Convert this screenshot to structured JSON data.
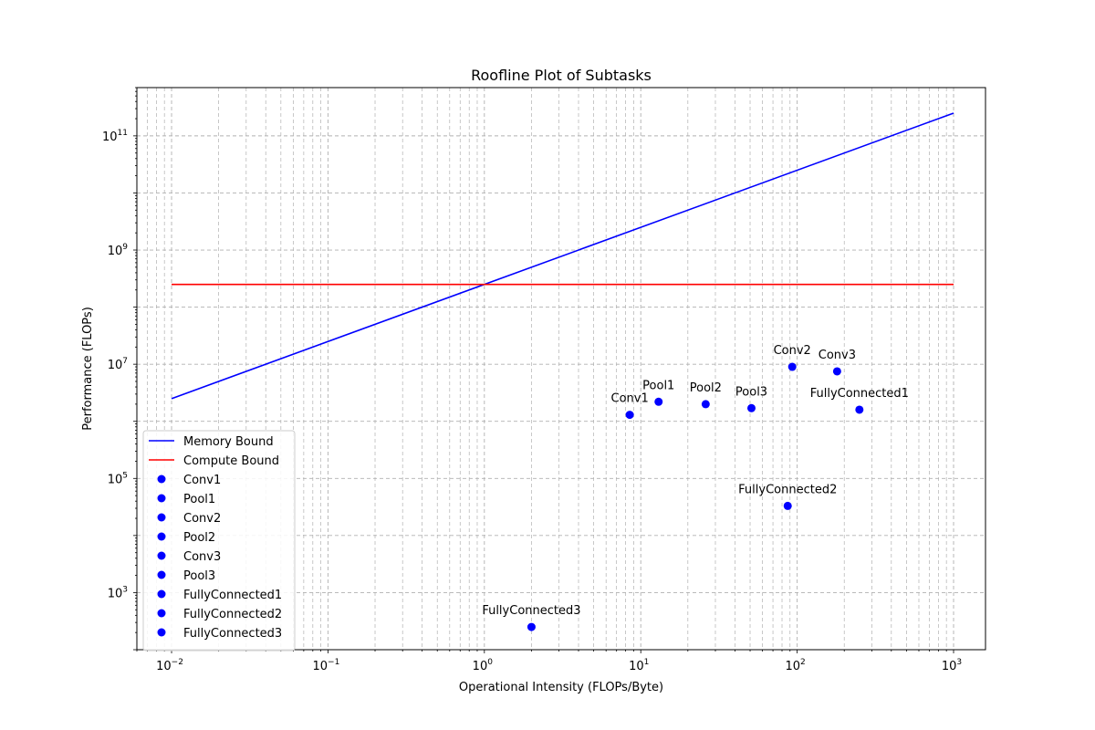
{
  "chart_data": {
    "type": "scatter",
    "title": "Roofline Plot of Subtasks",
    "xlabel": "Operational Intensity (FLOPs/Byte)",
    "ylabel": "Performance (FLOPs)",
    "xscale": "log",
    "yscale": "log",
    "xlim": [
      0.006,
      1600
    ],
    "ylim": [
      100,
      700000000000
    ],
    "grid": "both-dashed",
    "legend_position": "lower-left",
    "x_ticks": [
      {
        "value": 0.01,
        "base": "10",
        "exp": "−2"
      },
      {
        "value": 0.1,
        "base": "10",
        "exp": "−1"
      },
      {
        "value": 1,
        "base": "10",
        "exp": "0"
      },
      {
        "value": 10,
        "base": "10",
        "exp": "1"
      },
      {
        "value": 100,
        "base": "10",
        "exp": "2"
      },
      {
        "value": 1000,
        "base": "10",
        "exp": "3"
      }
    ],
    "y_ticks": [
      {
        "value": 1000,
        "base": "10",
        "exp": "3"
      },
      {
        "value": 100000,
        "base": "10",
        "exp": "5"
      },
      {
        "value": 10000000,
        "base": "10",
        "exp": "7"
      },
      {
        "value": 1000000000,
        "base": "10",
        "exp": "9"
      },
      {
        "value": 100000000000,
        "base": "10",
        "exp": "11"
      }
    ],
    "lines": [
      {
        "name": "Memory Bound",
        "color": "#0000ff",
        "x": [
          0.01,
          1000
        ],
        "y": [
          2500000,
          250000000000
        ]
      },
      {
        "name": "Compute Bound",
        "color": "#ff0000",
        "x": [
          0.01,
          1000
        ],
        "y": [
          250000000,
          250000000
        ]
      }
    ],
    "points": [
      {
        "name": "Conv1",
        "x": 8.5,
        "y": 1300000
      },
      {
        "name": "Pool1",
        "x": 13,
        "y": 2200000
      },
      {
        "name": "Conv2",
        "x": 93,
        "y": 9000000
      },
      {
        "name": "Pool2",
        "x": 26,
        "y": 2000000
      },
      {
        "name": "Conv3",
        "x": 180,
        "y": 7500000
      },
      {
        "name": "Pool3",
        "x": 51,
        "y": 1700000
      },
      {
        "name": "FullyConnected1",
        "x": 250,
        "y": 1600000
      },
      {
        "name": "FullyConnected2",
        "x": 87,
        "y": 33000
      },
      {
        "name": "FullyConnected3",
        "x": 2,
        "y": 250
      }
    ],
    "point_color": "#0000ff"
  }
}
